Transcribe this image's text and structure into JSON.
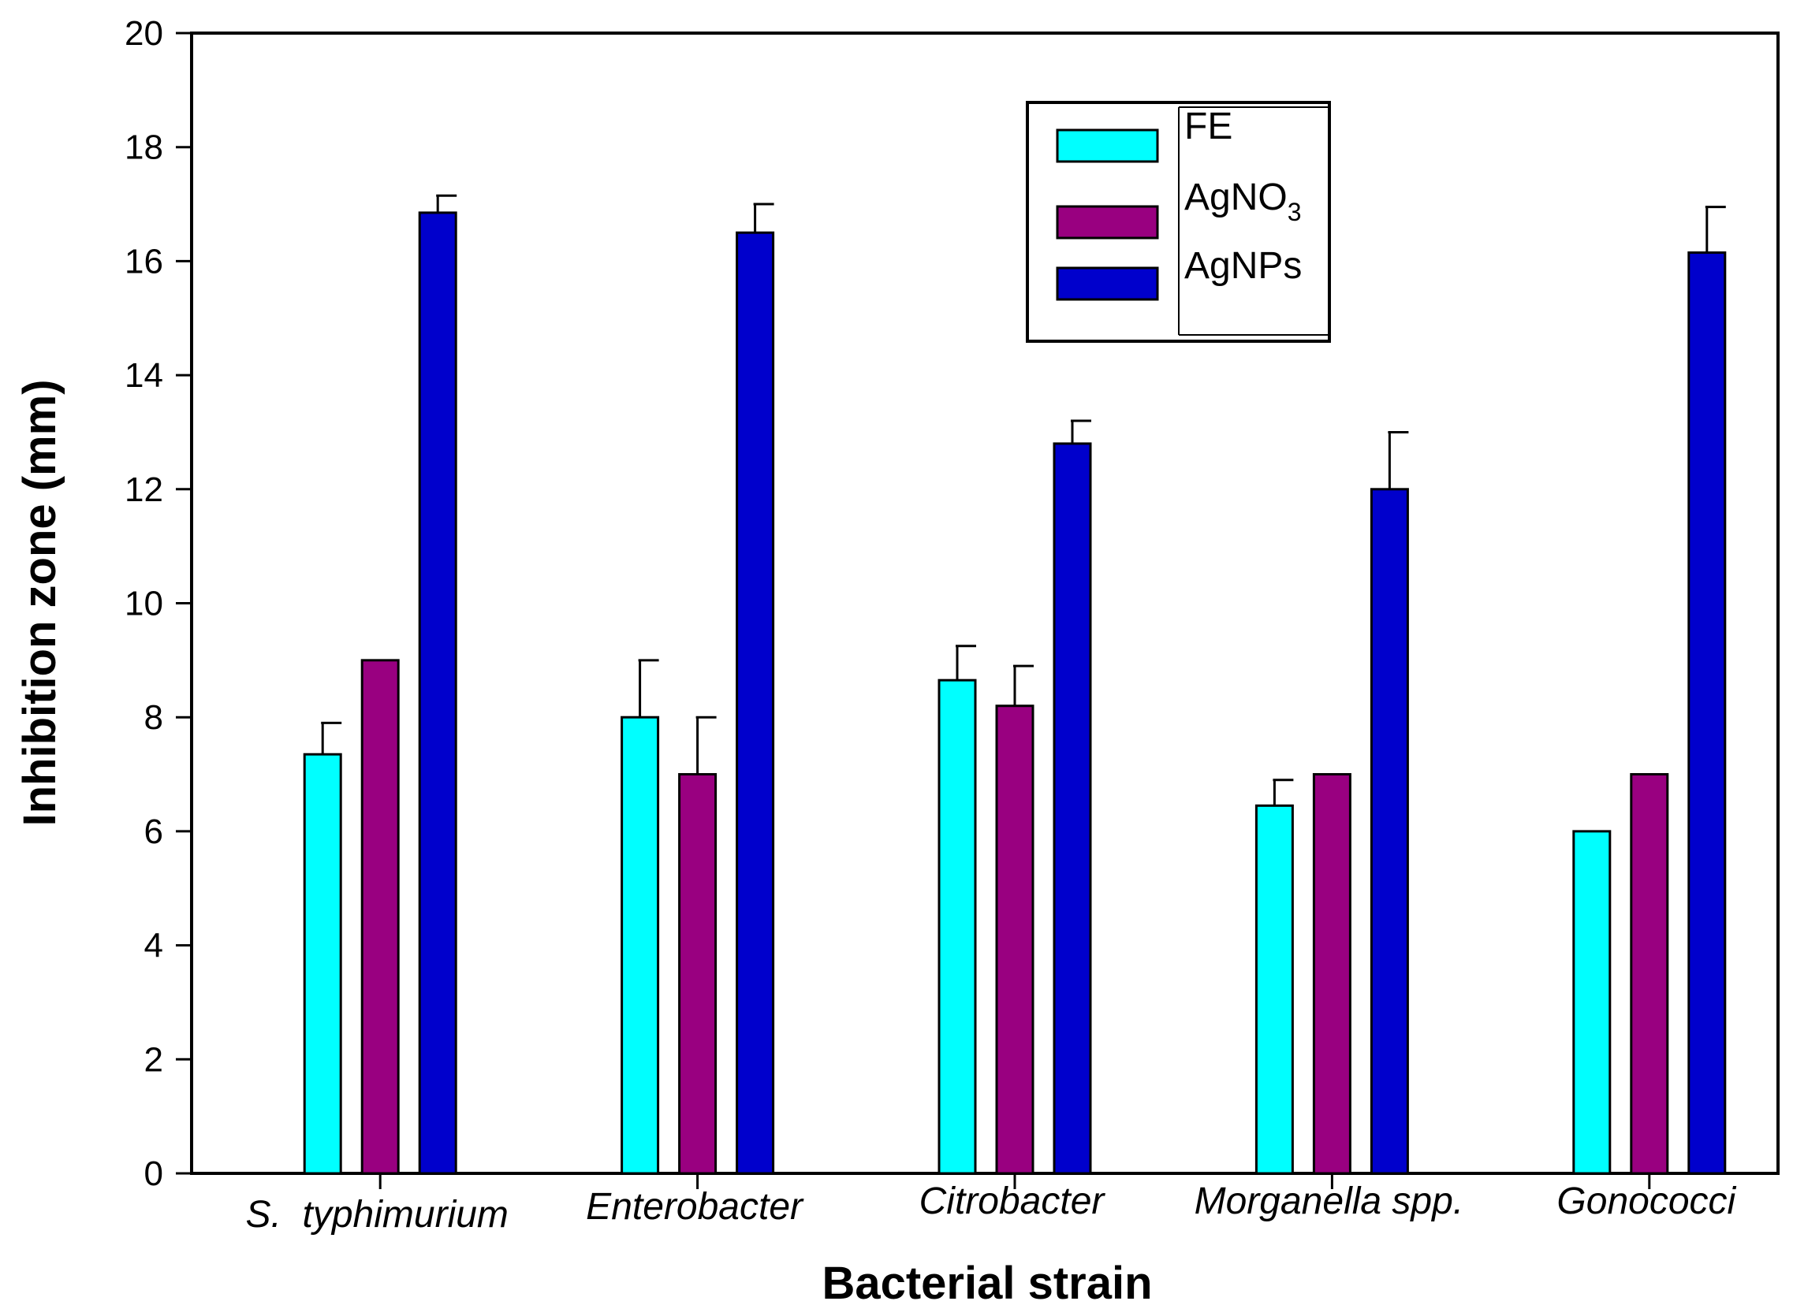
{
  "chart_data": {
    "type": "bar",
    "title": "",
    "xlabel": "Bacterial strain",
    "ylabel": "Inhibition zone (mm)",
    "ylim": [
      0,
      20
    ],
    "yticks": [
      "0",
      "2",
      "4",
      "6",
      "8",
      "10",
      "12",
      "14",
      "16",
      "18",
      "20"
    ],
    "categories": [
      "S.  typhimurium",
      "Enterobacter",
      "Citrobacter",
      "Morganella spp.",
      "Gonococci"
    ],
    "grid": false,
    "legend_position": "top-right",
    "series": [
      {
        "name": "FE",
        "label_main": "FE",
        "label_sub": "",
        "color": "#00FFFF",
        "values": [
          7.35,
          8.0,
          8.65,
          6.45,
          6.0
        ],
        "errors": [
          0.55,
          1.0,
          0.6,
          0.45,
          0.0
        ]
      },
      {
        "name": "AgNO3",
        "label_main": "AgNO",
        "label_sub": "3",
        "color": "#990080",
        "values": [
          9.0,
          7.0,
          8.2,
          7.0,
          7.0
        ],
        "errors": [
          0.0,
          1.0,
          0.7,
          0.0,
          0.0
        ]
      },
      {
        "name": "AgNPs",
        "label_main": "AgNPs",
        "label_sub": "",
        "color": "#0000CC",
        "values": [
          16.85,
          16.5,
          12.8,
          12.0,
          16.15
        ],
        "errors": [
          0.3,
          0.5,
          0.4,
          1.0,
          0.8
        ]
      }
    ]
  }
}
